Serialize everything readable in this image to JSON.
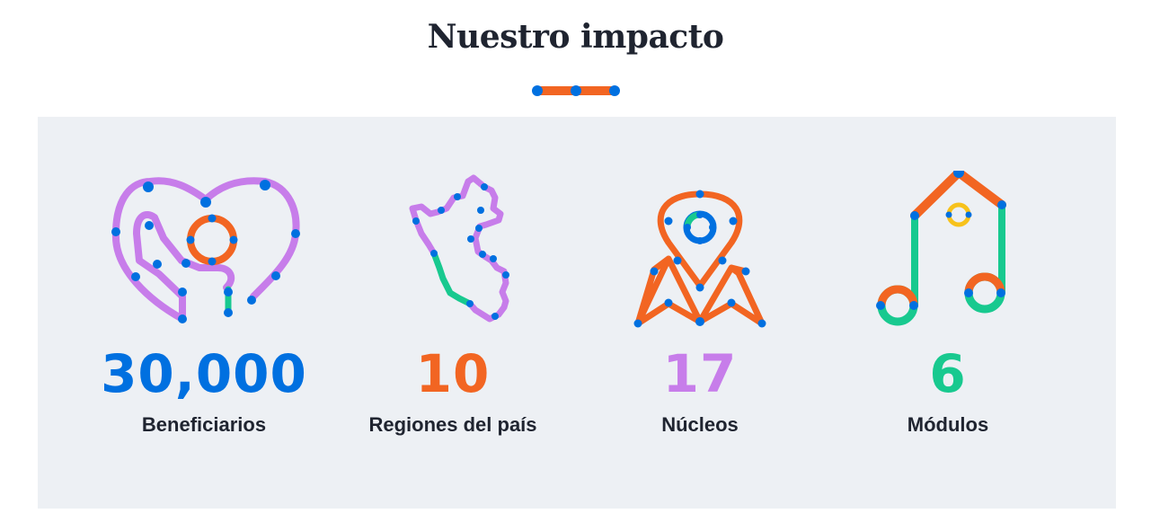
{
  "header": {
    "title": "Nuestro impacto"
  },
  "colors": {
    "blue": "#0070e0",
    "orange": "#f26522",
    "purple": "#c77dea",
    "green": "#18c98f",
    "yellow": "#f7c21b",
    "panel_bg": "#edf0f4",
    "title_text": "#1f2430"
  },
  "stats": [
    {
      "value": "30,000",
      "label": "Beneficiarios",
      "color": "#0070e0",
      "icon": "heart-hand-icon"
    },
    {
      "value": "10",
      "label": "Regiones del país",
      "color": "#f26522",
      "icon": "peru-map-icon"
    },
    {
      "value": "17",
      "label": "Núcleos",
      "color": "#c77dea",
      "icon": "map-pin-icon"
    },
    {
      "value": "6",
      "label": "Módulos",
      "color": "#18c98f",
      "icon": "music-note-icon"
    }
  ]
}
